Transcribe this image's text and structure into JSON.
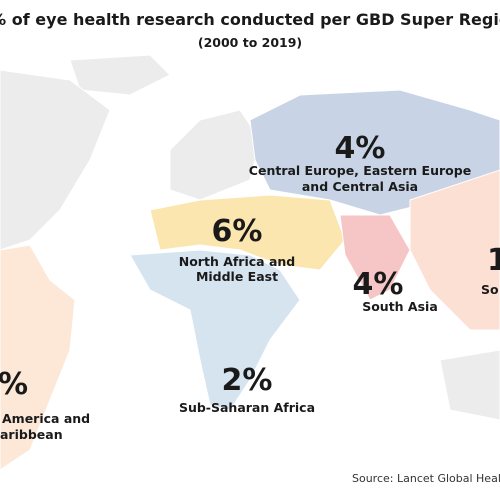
{
  "header": {
    "title": "% of eye health research conducted per GBD Super Regio",
    "subtitle": "(2000 to 2019)"
  },
  "regions": [
    {
      "value": "4%",
      "label": [
        "Central Europe, Eastern Europe",
        "and Central Asia"
      ]
    },
    {
      "value": "6%",
      "label": [
        "North Africa and",
        "Middle East"
      ]
    },
    {
      "value": "4%",
      "label": [
        "South Asia"
      ]
    },
    {
      "value": "1",
      "label": [
        "So"
      ]
    },
    {
      "value": "2%",
      "label": [
        "Sub-Saharan Africa"
      ]
    },
    {
      "value": "%",
      "label": [
        "America and",
        "aribbean"
      ]
    }
  ],
  "source": "Source: Lancet Global Health C"
}
